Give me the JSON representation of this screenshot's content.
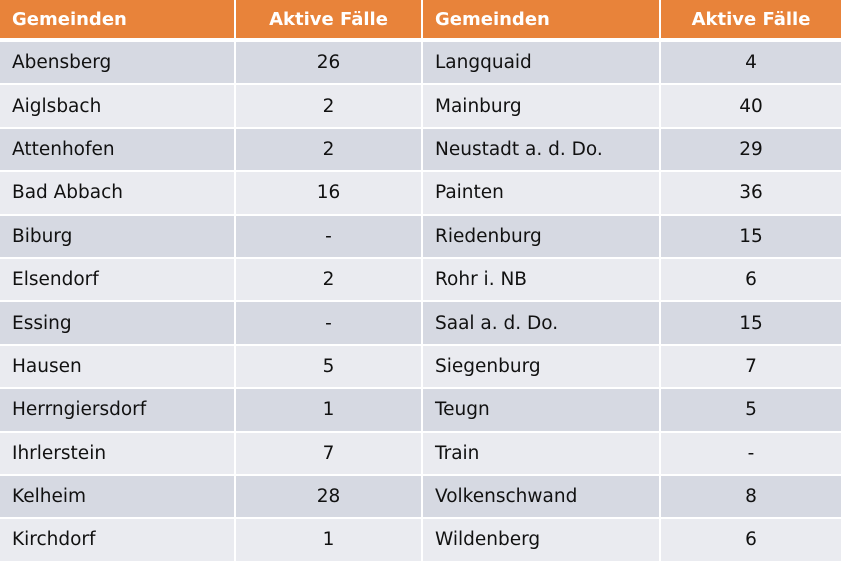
{
  "headers": [
    "Gemeinden",
    "Aktive Fälle",
    "Gemeinden",
    "Aktive Fälle"
  ],
  "colors": {
    "header": "#e8833a",
    "row_dark": "#d6d9e2",
    "row_light": "#eaebf0"
  },
  "rows": [
    [
      "Abensberg",
      "26",
      "Langquaid",
      "4"
    ],
    [
      "Aiglsbach",
      "2",
      "Mainburg",
      "40"
    ],
    [
      "Attenhofen",
      "2",
      "Neustadt a. d. Do.",
      "29"
    ],
    [
      "Bad Abbach",
      "16",
      "Painten",
      "36"
    ],
    [
      "Biburg",
      "-",
      "Riedenburg",
      "15"
    ],
    [
      "Elsendorf",
      "2",
      "Rohr i. NB",
      "6"
    ],
    [
      "Essing",
      "-",
      "Saal a. d. Do.",
      "15"
    ],
    [
      "Hausen",
      "5",
      "Siegenburg",
      "7"
    ],
    [
      "Herrngiersdorf",
      "1",
      "Teugn",
      "5"
    ],
    [
      "Ihrlerstein",
      "7",
      "Train",
      "-"
    ],
    [
      "Kelheim",
      "28",
      "Volkenschwand",
      "8"
    ],
    [
      "Kirchdorf",
      "1",
      "Wildenberg",
      "6"
    ]
  ]
}
